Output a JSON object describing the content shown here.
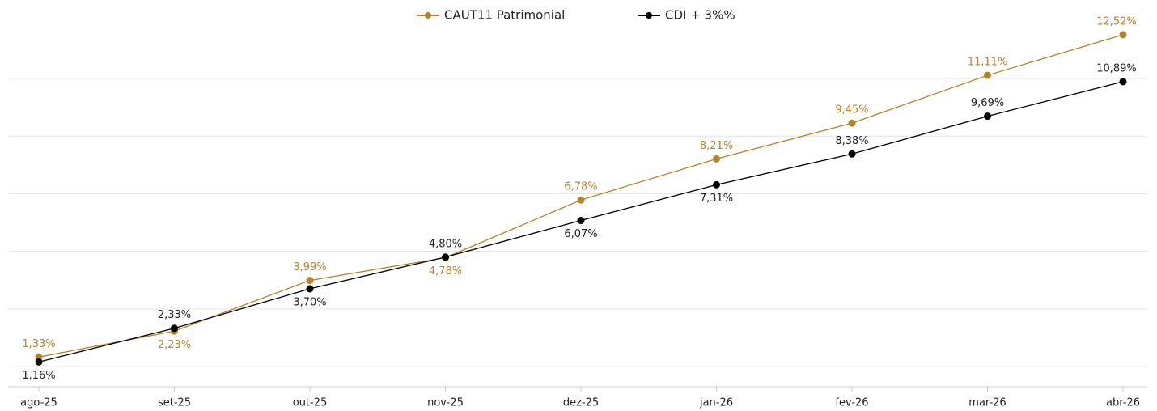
{
  "chart_data": {
    "type": "line",
    "categories": [
      "ago-25",
      "set-25",
      "out-25",
      "nov-25",
      "dez-25",
      "jan-26",
      "fev-26",
      "mar-26",
      "abr-26"
    ],
    "series": [
      {
        "name": "CAUT11 Patrimonial",
        "color": "#b5832a",
        "values": [
          1.33,
          2.23,
          3.99,
          4.78,
          6.78,
          8.21,
          9.45,
          11.11,
          12.52
        ],
        "value_labels": [
          "1,33%",
          "2,23%",
          "3,99%",
          "4,78%",
          "6,78%",
          "8,21%",
          "9,45%",
          "11,11%",
          "12,52%"
        ]
      },
      {
        "name": "CDI + 3%%",
        "color": "#000000",
        "values": [
          1.16,
          2.33,
          3.7,
          4.8,
          6.07,
          7.31,
          8.38,
          9.69,
          10.89
        ],
        "value_labels": [
          "1,16%",
          "2,33%",
          "3,70%",
          "4,80%",
          "6,07%",
          "7,31%",
          "8,38%",
          "9,69%",
          "10,89%"
        ]
      }
    ],
    "ylim": [
      0.3,
      12.6
    ],
    "yticks": [
      1,
      3,
      5,
      7,
      9,
      11
    ],
    "grid": true,
    "legend": "top"
  }
}
